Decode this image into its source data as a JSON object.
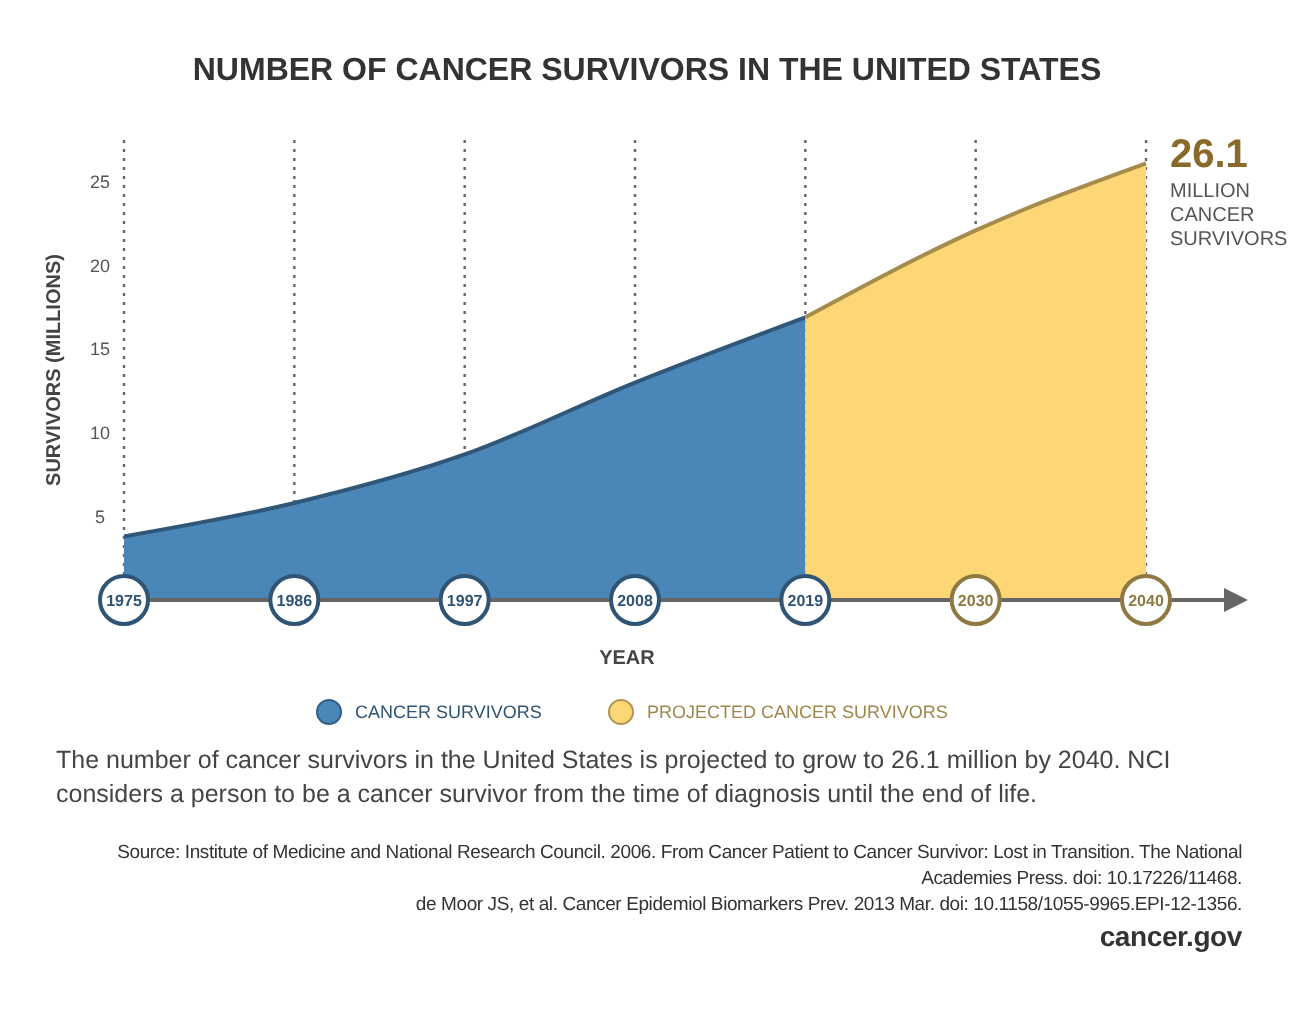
{
  "chart_data": {
    "type": "area",
    "title": "NUMBER OF CANCER SURVIVORS IN THE UNITED STATES",
    "xlabel": "YEAR",
    "ylabel": "SURVIVORS (MILLIONS)",
    "categories": [
      "1975",
      "1986",
      "1997",
      "2008",
      "2019",
      "2030",
      "2040"
    ],
    "series": [
      {
        "name": "CANCER SURVIVORS",
        "color": "#4a86b8",
        "values": [
          3.8,
          5.8,
          8.7,
          13,
          16.9,
          null,
          null
        ]
      },
      {
        "name": "PROJECTED CANCER SURVIVORS",
        "color": "#fdd675",
        "values": [
          null,
          null,
          null,
          null,
          16.9,
          22.1,
          26.1
        ]
      }
    ],
    "ylim": [
      0,
      27.5
    ],
    "yticks": [
      5,
      10,
      15,
      20,
      25
    ],
    "grid": "x",
    "legend": "bottom",
    "annotations": [
      {
        "text": "26.1 MILLION CANCER SURVIVORS",
        "x": "2040",
        "y": 26.1
      },
      "The number of cancer survivors in the United States is projected to grow to 26.1 million by 2040. NCI considers a person to be a cancer survivor from the time of diagnosis until the end of life.",
      "Source: Institute of Medicine and National Research Council. 2006. From Cancer Patient to Cancer Survivor: Lost in Transition. The National Academies Press. doi: 10.17226/11468.",
      "de Moor JS, et al. Cancer Epidemiol Biomarkers Prev. 2013 Mar. doi: 10.1158/1055-9965.EPI-12-1356.",
      "cancer.gov"
    ]
  }
}
